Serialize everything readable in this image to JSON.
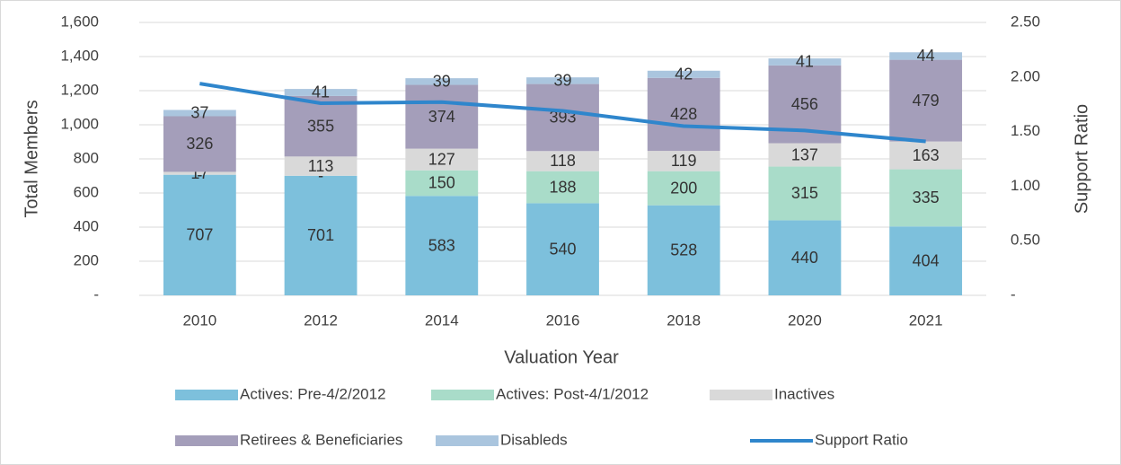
{
  "chart_data": {
    "type": "bar",
    "stacked": true,
    "x_label": "Valuation Year",
    "y_label": "Total Members",
    "y2_label": "Support Ratio",
    "categories": [
      "2010",
      "2012",
      "2014",
      "2016",
      "2018",
      "2020",
      "2021"
    ],
    "series": [
      {
        "name": "Actives:  Pre-4/2/2012",
        "color": "#7dc0dc",
        "values": [
          707,
          701,
          583,
          540,
          528,
          440,
          404
        ]
      },
      {
        "name": "Actives:  Post-4/1/2012",
        "color": "#a9dcc9",
        "values": [
          0,
          0,
          150,
          188,
          200,
          315,
          335
        ],
        "value_labels": [
          "-",
          "-",
          "150",
          "188",
          "200",
          "315",
          "335"
        ]
      },
      {
        "name": "Inactives",
        "color": "#d9d9d9",
        "values": [
          17,
          113,
          127,
          118,
          119,
          137,
          163
        ]
      },
      {
        "name": "Retirees & Beneficiaries",
        "color": "#a49eba",
        "values": [
          326,
          355,
          374,
          393,
          428,
          456,
          479
        ]
      },
      {
        "name": "Disableds",
        "color": "#aac5de",
        "values": [
          37,
          41,
          39,
          39,
          42,
          41,
          44
        ]
      },
      {
        "name": "Support Ratio",
        "type": "line",
        "axis": "y2",
        "color": "#2f86cc",
        "values": [
          1.94,
          1.76,
          1.77,
          1.69,
          1.55,
          1.51,
          1.41
        ]
      }
    ],
    "ylim": [
      0,
      1600
    ],
    "yticks": [
      {
        "value": 0,
        "label": "-"
      },
      200,
      400,
      600,
      800,
      {
        "value": 1000,
        "label": "1,000"
      },
      {
        "value": 1200,
        "label": "1,200"
      },
      {
        "value": 1400,
        "label": "1,400"
      },
      {
        "value": 1600,
        "label": "1,600"
      }
    ],
    "y2lim": [
      0,
      2.5
    ],
    "y2ticks": [
      {
        "value": 0,
        "label": "-"
      },
      {
        "value": 0.5,
        "label": "0.50"
      },
      {
        "value": 1,
        "label": "1.00"
      },
      {
        "value": 1.5,
        "label": "1.50"
      },
      {
        "value": 2,
        "label": "2.00"
      },
      {
        "value": 2.5,
        "label": "2.50"
      }
    ],
    "grid": true
  }
}
